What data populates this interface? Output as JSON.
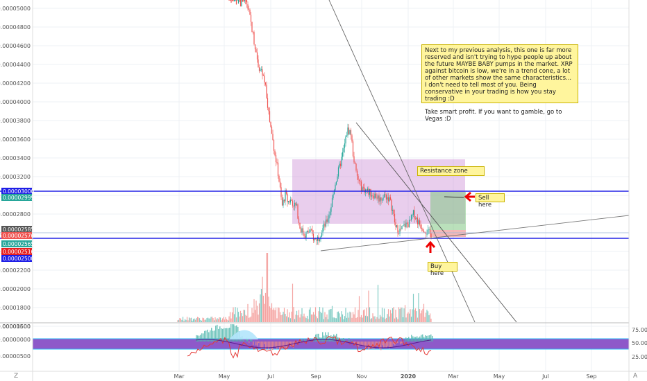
{
  "chart_data": {
    "type": "candlestick",
    "price_axis_ticks": [
      "0.00005000",
      "0.00004800",
      "0.00004600",
      "0.00004400",
      "0.00004200",
      "0.00004000",
      "0.00003800",
      "0.00003600",
      "0.00003400",
      "0.00003200",
      "0.00003000",
      "0.00002800",
      "0.00002600",
      "0.00002400",
      "0.00002200",
      "0.00002000",
      "0.00001800",
      "0.00001600"
    ],
    "price_badges": [
      {
        "label": "0.00003000",
        "color": "#1e1ee6"
      },
      {
        "label": "0.00002999",
        "color": "#26a69a"
      },
      {
        "label": "0.00002585",
        "color": "#555555"
      },
      {
        "label": "0.00002576",
        "color": "#ef5350"
      },
      {
        "label": "0.00002565",
        "color": "#26a69a"
      },
      {
        "label": "0.00002516",
        "color": "#e62020"
      },
      {
        "label": "0.00002500",
        "color": "#1e1ee6"
      }
    ],
    "x_axis_labels": [
      "Mar",
      "May",
      "Jul",
      "Sep",
      "Nov",
      "2020",
      "Mar",
      "May",
      "Jul",
      "Sep"
    ],
    "lower_pane_left_ticks": [
      "0.00000500",
      "0.00000000",
      "-0.00000500"
    ],
    "lower_pane_right_ticks": [
      "75.00",
      "50.00",
      "25.00"
    ],
    "price_path": [
      [
        0.0,
        5.2e-05
      ],
      [
        1.6,
        5.05e-05
      ],
      [
        2.0,
        4.8e-05
      ],
      [
        2.6,
        4.4e-05
      ],
      [
        3.2,
        4.2e-05
      ],
      [
        3.6,
        3.8e-05
      ],
      [
        4.0,
        3.5e-05
      ],
      [
        4.4,
        3.2e-05
      ],
      [
        4.7,
        2.88e-05
      ],
      [
        5.0,
        3.02e-05
      ],
      [
        5.2,
        2.93e-05
      ],
      [
        5.5,
        2.95e-05
      ],
      [
        6.0,
        2.87e-05
      ],
      [
        6.3,
        2.65e-05
      ],
      [
        6.7,
        2.58e-05
      ],
      [
        7.2,
        2.62e-05
      ],
      [
        7.6,
        2.52e-05
      ],
      [
        8.0,
        2.56e-05
      ],
      [
        8.2,
        2.62e-05
      ],
      [
        8.6,
        2.7e-05
      ],
      [
        9.0,
        2.85e-05
      ],
      [
        9.4,
        3.12e-05
      ],
      [
        9.8,
        3.3e-05
      ],
      [
        10.2,
        3.5e-05
      ],
      [
        10.5,
        3.7e-05
      ],
      [
        10.8,
        3.68e-05
      ],
      [
        11.0,
        3.45e-05
      ],
      [
        11.3,
        3.22e-05
      ],
      [
        11.7,
        3.09e-05
      ],
      [
        12.2,
        3.05e-05
      ],
      [
        12.6,
        3.02e-05
      ],
      [
        13.0,
        3e-05
      ],
      [
        13.4,
        2.96e-05
      ],
      [
        13.8,
        3e-05
      ],
      [
        14.2,
        2.97e-05
      ],
      [
        14.5,
        2.85e-05
      ],
      [
        14.8,
        2.65e-05
      ],
      [
        15.2,
        2.62e-05
      ],
      [
        15.6,
        2.68e-05
      ],
      [
        16.0,
        2.7e-05
      ],
      [
        16.4,
        2.81e-05
      ],
      [
        16.8,
        2.71e-05
      ],
      [
        17.2,
        2.66e-05
      ],
      [
        17.6,
        2.61e-05
      ],
      [
        18.0,
        2.57e-05
      ]
    ]
  },
  "annotations": {
    "note_main_1": "Next to my previous analysis, this one is far more reserved and isn't trying to hype people up about the future MAYBE BABY pumps in the market. XRP against bitcoin is low, we're in a trend cone, a lot of other markets show the same characteristics... I don't need to tell most of you. Being conservative in your trading is how you stay trading :D",
    "note_main_2": "Take smart profit. If you want to gamble, go to Vegas :D",
    "resistance": "Resistance zone",
    "sell": "Sell here",
    "buy": "Buy here"
  },
  "chrome": {
    "left_corner": "Z",
    "right_corner": "A"
  }
}
